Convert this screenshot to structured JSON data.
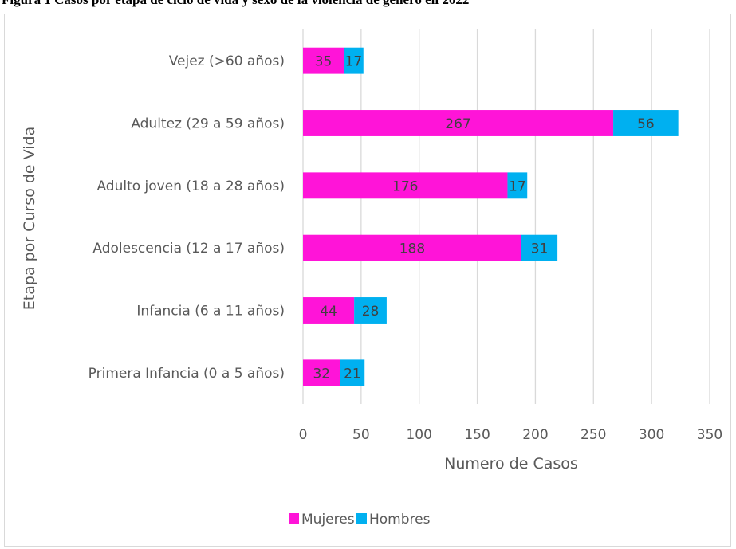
{
  "caption": "Figura 1 Casos por etapa de ciclo de vida y sexo de la violencia de género en 2022",
  "chart_data": {
    "type": "bar",
    "orientation": "horizontal",
    "stacked": true,
    "categories": [
      "Primera Infancia (0 a 5 años)",
      "Infancia (6 a 11 años)",
      "Adolescencia (12 a 17 años)",
      "Adulto joven (18 a 28 años)",
      "Adultez (29 a 59 años)",
      "Vejez (>60 años)"
    ],
    "series": [
      {
        "name": "Mujeres",
        "color": "#ff14d8",
        "values": [
          32,
          44,
          188,
          176,
          267,
          35
        ]
      },
      {
        "name": "Hombres",
        "color": "#00b0f0",
        "values": [
          21,
          28,
          31,
          17,
          56,
          17
        ]
      }
    ],
    "xlabel": "Numero de Casos",
    "ylabel": "Etapa por Curso de Vida",
    "xlim": [
      0,
      350
    ],
    "xticks": [
      "0",
      "50",
      "100",
      "150",
      "200",
      "250",
      "300",
      "350"
    ],
    "grid": true,
    "legend": "bottom",
    "gridColor": "#d9d9d9"
  }
}
